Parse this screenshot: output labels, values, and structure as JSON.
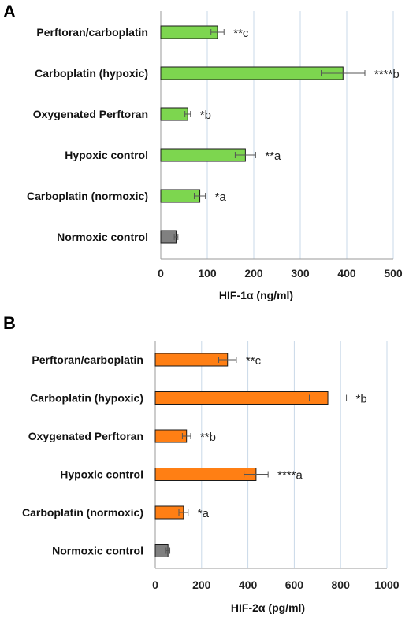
{
  "chart_data": [
    {
      "type": "bar",
      "orientation": "horizontal",
      "panel_label": "A",
      "categories": [
        "Perftoran/carboplatin",
        "Carboplatin (hypoxic)",
        "Oxygenated Perftoran",
        "Hypoxic control",
        "Carboplatin (normoxic)",
        "Normoxic control"
      ],
      "values": [
        122,
        392,
        58,
        182,
        84,
        33
      ],
      "errors": [
        14,
        47,
        6,
        22,
        12,
        4
      ],
      "annotations": [
        "**c",
        "****b",
        "*b",
        "**a",
        "*a",
        ""
      ],
      "bar_colors": [
        "#7dd64f",
        "#7dd64f",
        "#7dd64f",
        "#7dd64f",
        "#7dd64f",
        "#808080"
      ],
      "xlabel": "HIF-1α (ng/ml)",
      "xlim": [
        0,
        500
      ],
      "xticks": [
        0,
        100,
        200,
        300,
        400,
        500
      ],
      "grid": true
    },
    {
      "type": "bar",
      "orientation": "horizontal",
      "panel_label": "B",
      "categories": [
        "Perftoran/carboplatin",
        "Carboplatin (hypoxic)",
        "Oxygenated Perftoran",
        "Hypoxic control",
        "Carboplatin (normoxic)",
        "Normoxic control"
      ],
      "values": [
        312,
        745,
        135,
        435,
        122,
        55
      ],
      "errors": [
        38,
        80,
        18,
        52,
        20,
        8
      ],
      "annotations": [
        "**c",
        "*b",
        "**b",
        "****a",
        "*a",
        ""
      ],
      "bar_colors": [
        "#ff7f14",
        "#ff7f14",
        "#ff7f14",
        "#ff7f14",
        "#ff7f14",
        "#808080"
      ],
      "xlabel": "HIF-2α (pg/ml)",
      "xlim": [
        0,
        1000
      ],
      "xticks": [
        0,
        200,
        400,
        600,
        800,
        1000
      ],
      "grid": true
    }
  ]
}
